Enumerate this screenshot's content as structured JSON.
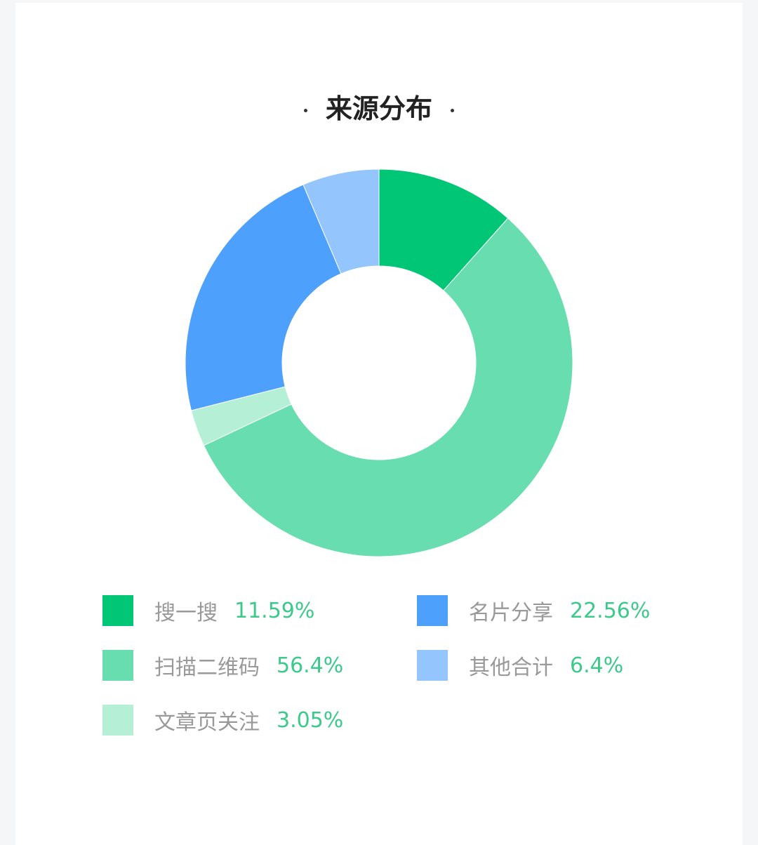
{
  "chart_data": {
    "type": "pie",
    "variant": "donut",
    "title": "来源分布",
    "legend_position": "bottom",
    "slices": [
      {
        "label": "搜一搜",
        "value": 11.59,
        "display": "11.59%",
        "color": "#00c675"
      },
      {
        "label": "扫描二维码",
        "value": 56.4,
        "display": "56.4%",
        "color": "#67ddb0"
      },
      {
        "label": "文章页关注",
        "value": 3.05,
        "display": "3.05%",
        "color": "#b4efd6"
      },
      {
        "label": "名片分享",
        "value": 22.56,
        "display": "22.56%",
        "color": "#4ea0fd"
      },
      {
        "label": "其他合计",
        "value": 6.4,
        "display": "6.4%",
        "color": "#95c5fd"
      }
    ],
    "legend_order": [
      0,
      3,
      1,
      4,
      2
    ],
    "value_color": "#3cc98b"
  }
}
